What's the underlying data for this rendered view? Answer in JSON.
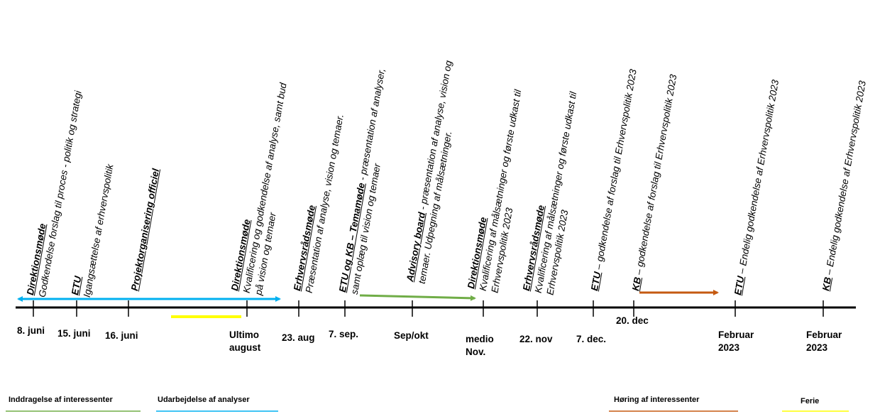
{
  "events": [
    {
      "title": "Direktionsmøde",
      "sep": "",
      "l1": "Godkendelse forslag til proces - politik og strategi",
      "l2": ""
    },
    {
      "title": "ETU",
      "sep": "",
      "l1": "Igangsættelse af erhvervspolitik",
      "l2": ""
    },
    {
      "title": "Projektorganisering officiel",
      "sep": "",
      "l1": "",
      "l2": ""
    },
    {
      "title": "Direktionsmøde",
      "sep": "",
      "l1": "Kvalificering og godkendelse af analyse, samt bud",
      "l2": "på vision og temaer"
    },
    {
      "title": "Erhvervsrådsmøde",
      "sep": "",
      "l1": "Præsentation af analyse, vision og temaer.",
      "l2": ""
    },
    {
      "title": "ETU og KB – Temamøde",
      "sep": " - præsentation af analyser,",
      "l1": "",
      "l2": "samt oplæg til vision og temaer"
    },
    {
      "title": "Advisory board",
      "sep": " - præsentation af analyse, vision og",
      "l1": "",
      "l2": "temaer. Udpegning af målsætninger."
    },
    {
      "title": "Direktionsmøde",
      "sep": "",
      "l1": "Kvalificering af målsætninger og første udkast til",
      "l2": "Erhvervspolitik 2023"
    },
    {
      "title": "Erhvervsrådsmøde",
      "sep": "",
      "l1": "Kvalificering af målsætninger og første udkast til",
      "l2": "Erhvervspolitik 2023"
    },
    {
      "title": "ETU",
      "sep": " – godkendelse af forslag til Erhvervspolitik 2023",
      "l1": "",
      "l2": ""
    },
    {
      "title": "KB",
      "sep": " – godkendelse af forslag til Erhvervspolitik 2023",
      "l1": "",
      "l2": ""
    },
    {
      "title": "ETU",
      "sep": " – Endelig godkendelse af Erhvervspolitik 2023",
      "l1": "",
      "l2": ""
    },
    {
      "title": "KB",
      "sep": " – Endelig godkendelse af Erhvervspolitik 2023",
      "l1": "",
      "l2": ""
    }
  ],
  "dates": [
    {
      "l1": "8. juni",
      "l2": ""
    },
    {
      "l1": "15. juni",
      "l2": ""
    },
    {
      "l1": "16. juni",
      "l2": ""
    },
    {
      "l1": "Ultimo",
      "l2": "august"
    },
    {
      "l1": "23. aug",
      "l2": ""
    },
    {
      "l1": "7. sep.",
      "l2": ""
    },
    {
      "l1": "Sep/okt",
      "l2": ""
    },
    {
      "l1": "medio",
      "l2": "Nov."
    },
    {
      "l1": "22. nov",
      "l2": ""
    },
    {
      "l1": "7. dec.",
      "l2": ""
    },
    {
      "l1": "20. dec",
      "l2": ""
    },
    {
      "l1": "Februar",
      "l2": "2023"
    },
    {
      "l1": "Februar",
      "l2": "2023"
    }
  ],
  "legend": [
    {
      "label": "Inddragelse af interessenter",
      "color": "#70ad47"
    },
    {
      "label": "Udarbejdelse af analyser",
      "color": "#00b0f0"
    },
    {
      "label": "Høring af interessenter",
      "color": "#c55a11"
    },
    {
      "label": "Ferie",
      "color": "#ffff00"
    }
  ],
  "colors": {
    "axis": "#000000",
    "analysis_arrow": "#00b0f0",
    "engagement_arrow": "#70ad47",
    "hearing_arrow": "#c55a11",
    "holiday_bar": "#ffff00"
  }
}
